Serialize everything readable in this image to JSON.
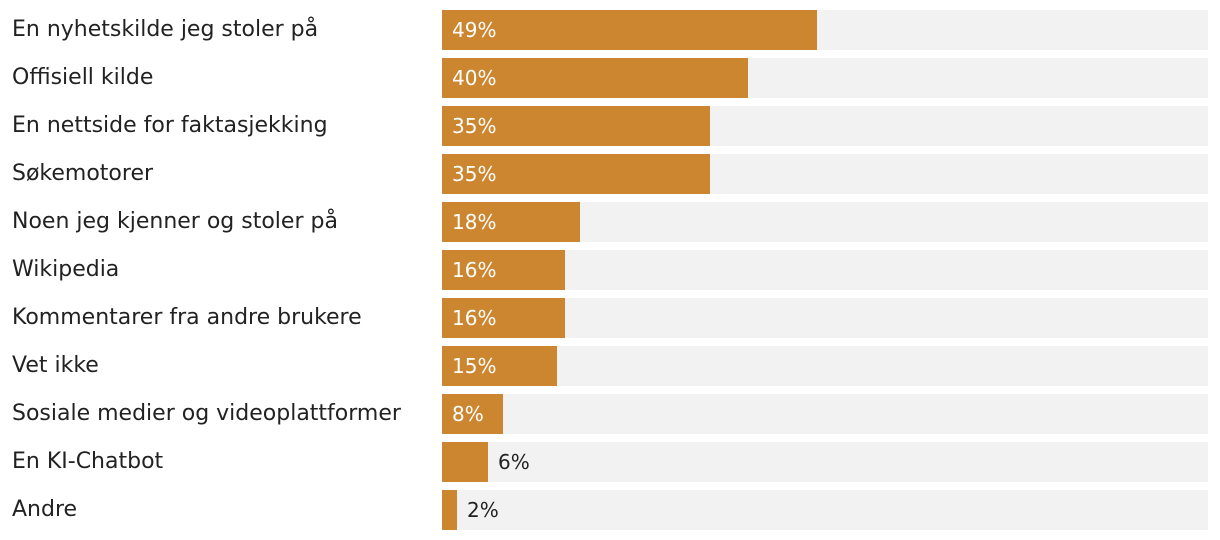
{
  "chart_data": {
    "type": "bar",
    "orientation": "horizontal",
    "categories": [
      "En nyhetskilde jeg stoler på",
      "Offisiell kilde",
      "En nettside for faktasjekking",
      "Søkemotorer",
      "Noen jeg kjenner og stoler på",
      "Wikipedia",
      "Kommentarer fra andre brukere",
      "Vet ikke",
      "Sosiale medier og videoplattformer",
      "En KI-Chatbot",
      "Andre"
    ],
    "values": [
      49,
      40,
      35,
      35,
      18,
      16,
      16,
      15,
      8,
      6,
      2
    ],
    "value_labels": [
      "49%",
      "40%",
      "35%",
      "35%",
      "18%",
      "16%",
      "16%",
      "15%",
      "8%",
      "6%",
      "2%"
    ],
    "value_unit": "%",
    "xlim": [
      0,
      100
    ],
    "grid": false,
    "legend": "none",
    "bar_color": "#cd8630",
    "track_color": "#f2f2f2",
    "title": "",
    "xlabel": "",
    "ylabel": ""
  }
}
